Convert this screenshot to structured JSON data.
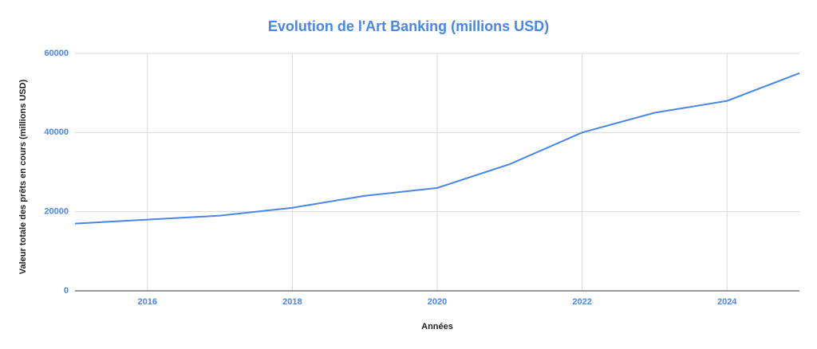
{
  "chart_data": {
    "type": "line",
    "title": "Evolution de l'Art Banking (millions USD)",
    "x_label": "Années",
    "y_label": "Valeur totale des prêts en cours (millions USD)",
    "x": [
      2015,
      2016,
      2017,
      2018,
      2019,
      2020,
      2021,
      2022,
      2023,
      2024,
      2025
    ],
    "values": [
      17000,
      18000,
      19000,
      21000,
      24000,
      26000,
      32000,
      40000,
      45000,
      48000,
      55000
    ],
    "color": "#4a86e8",
    "xlim": [
      2015,
      2025
    ],
    "xticks": [
      2016,
      2018,
      2020,
      2022,
      2024
    ],
    "ylim": [
      0,
      60000
    ],
    "yticks": [
      0,
      20000,
      40000,
      60000
    ],
    "grid": true
  }
}
